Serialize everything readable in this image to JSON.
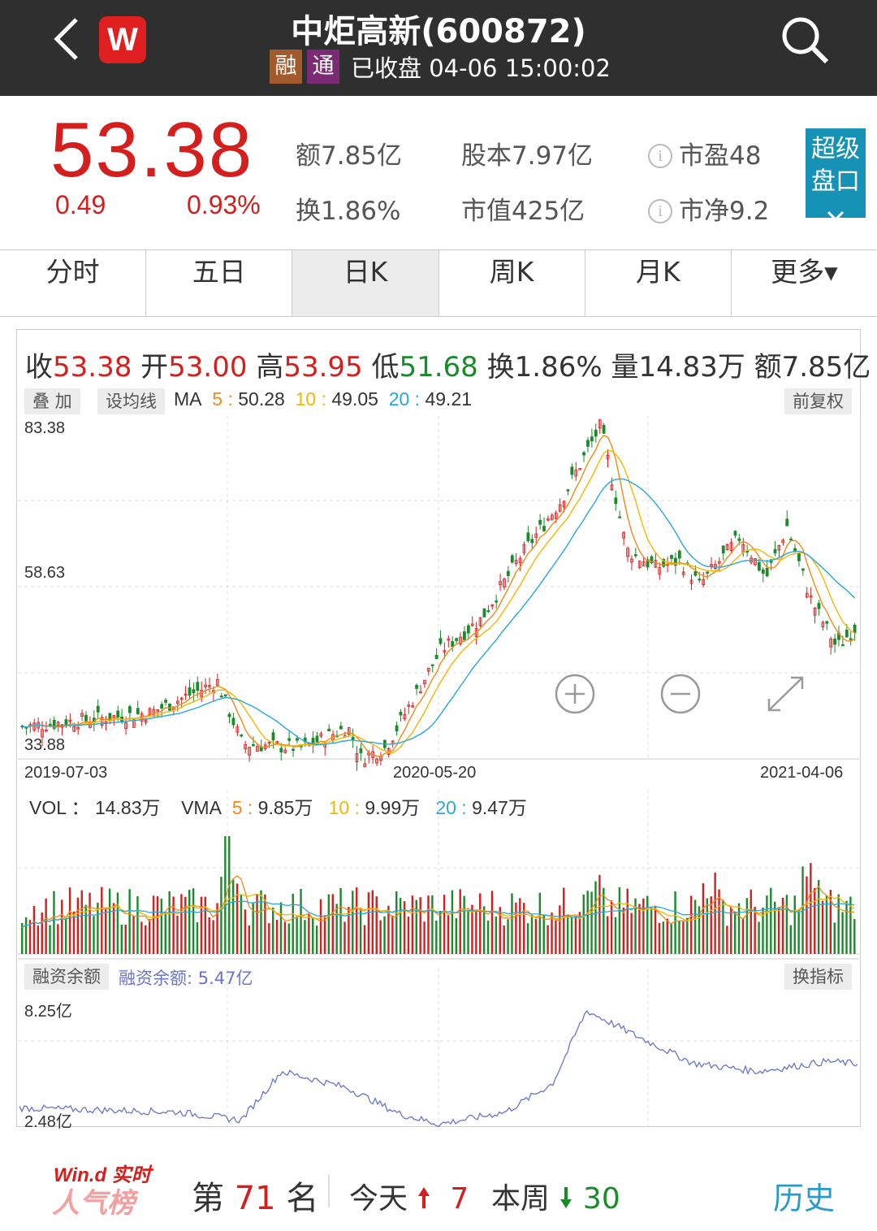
{
  "header": {
    "title": "中炬高新(600872)",
    "tag_rong": "融",
    "tag_tong": "通",
    "status": "已收盘 04-06 15:00:02",
    "logo_letter": "W"
  },
  "quote": {
    "price": "53.38",
    "change": "0.49",
    "change_pct": "0.93%",
    "amount": "额7.85亿",
    "turnover": "换1.86%",
    "share_capital": "股本7.97亿",
    "market_cap": "市值425亿",
    "pe": "市盈48",
    "pb": "市净9.2",
    "super_panel": "超级盘口"
  },
  "tabs": [
    {
      "label": "分时",
      "active": false
    },
    {
      "label": "五日",
      "active": false
    },
    {
      "label": "日K",
      "active": true
    },
    {
      "label": "周K",
      "active": false
    },
    {
      "label": "月K",
      "active": false
    },
    {
      "label": "更多▾",
      "active": false
    }
  ],
  "kline_header": {
    "close_label": "收",
    "close": "53.38",
    "open_label": "开",
    "open": "53.00",
    "high_label": "高",
    "high": "53.95",
    "low_label": "低",
    "low": "51.68",
    "turnover": "换1.86%",
    "volume": "量14.83万",
    "amount": "额7.85亿"
  },
  "toolbar": {
    "overlay": "叠 加",
    "set_ma": "设均线",
    "adjust": "前复权",
    "switch_indicator": "换指标",
    "margin_label": "融资余额"
  },
  "ma": {
    "label": "MA",
    "ma5_label": "5",
    "ma5": "50.28",
    "ma10_label": "10",
    "ma10": "49.05",
    "ma20_label": "20",
    "ma20": "49.21"
  },
  "vol_line": {
    "label": "VOL ：",
    "value": "14.83万",
    "vma_label": "VMA",
    "v5_label": "5",
    "v5": "9.85万",
    "v10_label": "10",
    "v10": "9.99万",
    "v20_label": "20",
    "v20": "9.47万"
  },
  "margin": {
    "text": "融资余额: 5.47亿",
    "max_label": "8.25亿",
    "min_label": "2.48亿"
  },
  "colors": {
    "up": "#d3201f",
    "down": "#1a8a2a",
    "ma5": "#f08a19",
    "ma10": "#f2b705",
    "ma20": "#2aa7d6",
    "margin_line": "#6a74c8",
    "accent": "#1792b7"
  },
  "icons": [
    "back-icon",
    "search-icon",
    "info-icon",
    "zoom-in-icon",
    "zoom-out-icon",
    "expand-icon",
    "chevron-down-icon",
    "arrow-up-icon",
    "arrow-down-icon"
  ],
  "chart_data": [
    {
      "type": "candlestick",
      "title": "日K",
      "y_ticks": [
        "83.38",
        "58.63",
        "33.88"
      ],
      "x_ticks": [
        "2019-07-03",
        "2020-05-20",
        "2021-04-06"
      ],
      "ylim": [
        33.88,
        83.38
      ],
      "grid": true,
      "close_trend": [
        {
          "x": "2019-07-03",
          "y": 38.5
        },
        {
          "x": "2019-10-10",
          "y": 40.5
        },
        {
          "x": "2019-12-01",
          "y": 45.0
        },
        {
          "x": "2019-12-20",
          "y": 36.0
        },
        {
          "x": "2020-02-05",
          "y": 35.5
        },
        {
          "x": "2020-03-10",
          "y": 38.5
        },
        {
          "x": "2020-03-20",
          "y": 34.0
        },
        {
          "x": "2020-04-08",
          "y": 35.5
        },
        {
          "x": "2020-05-20",
          "y": 49.5
        },
        {
          "x": "2020-06-20",
          "y": 54.0
        },
        {
          "x": "2020-07-20",
          "y": 63.0
        },
        {
          "x": "2020-08-20",
          "y": 71.0
        },
        {
          "x": "2020-09-20",
          "y": 82.0
        },
        {
          "x": "2020-10-10",
          "y": 64.0
        },
        {
          "x": "2020-11-01",
          "y": 61.5
        },
        {
          "x": "2020-11-20",
          "y": 62.5
        },
        {
          "x": "2020-12-05",
          "y": 59.0
        },
        {
          "x": "2021-01-05",
          "y": 66.0
        },
        {
          "x": "2021-01-25",
          "y": 60.0
        },
        {
          "x": "2021-02-10",
          "y": 67.5
        },
        {
          "x": "2021-02-28",
          "y": 57.0
        },
        {
          "x": "2021-03-20",
          "y": 50.0
        },
        {
          "x": "2021-04-06",
          "y": 53.38
        }
      ],
      "series": [
        {
          "name": "MA5",
          "last": 50.28
        },
        {
          "name": "MA10",
          "last": 49.05
        },
        {
          "name": "MA20",
          "last": 49.21
        }
      ]
    },
    {
      "type": "bar",
      "title": "VOL",
      "series": [
        {
          "name": "VOL",
          "last": "14.83万"
        },
        {
          "name": "VMA5",
          "last": "9.85万"
        },
        {
          "name": "VMA10",
          "last": "9.99万"
        },
        {
          "name": "VMA20",
          "last": "9.47万"
        }
      ]
    },
    {
      "type": "line",
      "title": "融资余额",
      "y_ticks": [
        "8.25亿",
        "2.48亿"
      ],
      "ylim": [
        2.48,
        8.25
      ],
      "trend": [
        {
          "x": "2019-07-03",
          "y": 3.3
        },
        {
          "x": "2019-11-01",
          "y": 3.1
        },
        {
          "x": "2019-12-20",
          "y": 2.7
        },
        {
          "x": "2020-01-20",
          "y": 5.1
        },
        {
          "x": "2020-03-10",
          "y": 4.3
        },
        {
          "x": "2020-04-20",
          "y": 3.0
        },
        {
          "x": "2020-05-20",
          "y": 2.5
        },
        {
          "x": "2020-07-10",
          "y": 3.1
        },
        {
          "x": "2020-08-15",
          "y": 4.5
        },
        {
          "x": "2020-09-10",
          "y": 8.1
        },
        {
          "x": "2020-10-20",
          "y": 6.8
        },
        {
          "x": "2020-12-01",
          "y": 5.5
        },
        {
          "x": "2021-01-20",
          "y": 5.1
        },
        {
          "x": "2021-03-15",
          "y": 5.6
        },
        {
          "x": "2021-04-06",
          "y": 5.47
        }
      ]
    }
  ],
  "footer": {
    "brand_top": "Win.d 实时",
    "brand_bottom": "人气榜",
    "rank_prefix": "第",
    "rank": "71",
    "rank_suffix": "名",
    "today_label": "今天",
    "today_value": "7",
    "week_label": "本周",
    "week_value": "30",
    "history": "历史"
  }
}
